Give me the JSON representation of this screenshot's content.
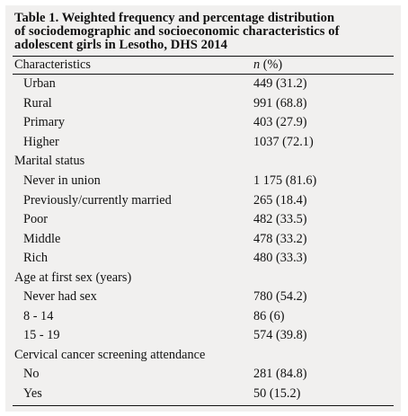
{
  "caption": {
    "line1": "Table 1. Weighted frequency and percentage distribution",
    "line2": "of sociodemographic and socioeconomic characteristics of",
    "line3": "adolescent girls in Lesotho, DHS 2014"
  },
  "headers": {
    "characteristics": "Characteristics",
    "n_label": "n",
    "pct_label": " (%)"
  },
  "rows": [
    {
      "label": "Urban",
      "value": "449 (31.2)"
    },
    {
      "label": "Rural",
      "value": "991 (68.8)"
    },
    {
      "label": "Primary",
      "value": "403 (27.9)"
    },
    {
      "label": "Higher",
      "value": "1037 (72.1)"
    },
    {
      "label": "Marital status",
      "value": ""
    },
    {
      "label": "Never in union",
      "value": "1 175 (81.6)"
    },
    {
      "label": "Previously/currently married",
      "value": "265 (18.4)"
    },
    {
      "label": "Poor",
      "value": "482 (33.5)"
    },
    {
      "label": "Middle",
      "value": "478 (33.2)"
    },
    {
      "label": "Rich",
      "value": "480 (33.3)"
    },
    {
      "label": "Age at first sex (years)",
      "value": ""
    },
    {
      "label": "Never had sex",
      "value": "780 (54.2)"
    },
    {
      "label": "8 - 14",
      "value": "86 (6)"
    },
    {
      "label": "15 - 19",
      "value": "574 (39.8)"
    },
    {
      "label": "Cervical cancer screening attendance",
      "value": ""
    },
    {
      "label": "No",
      "value": "281 (84.8)"
    },
    {
      "label": "Yes",
      "value": "50 (15.2)"
    }
  ]
}
